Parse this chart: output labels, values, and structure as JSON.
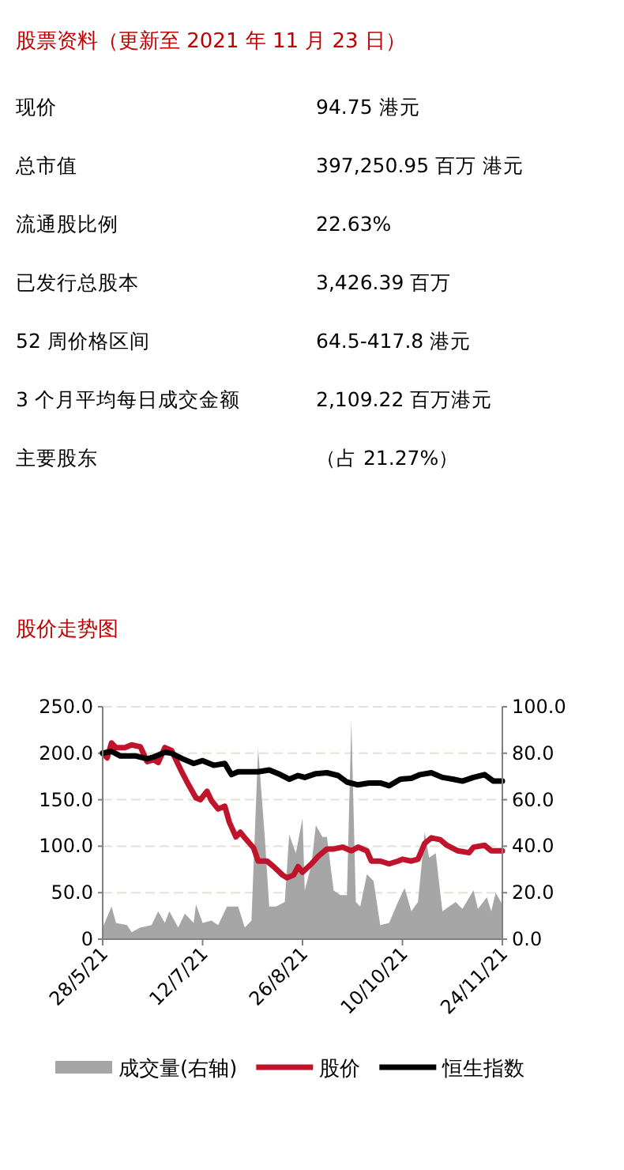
{
  "chart_data": [
    {
      "type": "other",
      "title": "股票资料（更新至 2021 年 11 月 23 日）",
      "annotations": [
        "现价",
        "94.75 港元",
        "总市值",
        "397,250.95 百万 港元",
        "流通股比例",
        "22.63%",
        "已发行总股本",
        "3,426.39 百万",
        "52 周价格区间",
        "64.5-417.8 港元",
        "3 个月平均每日成交金额",
        "2,109.22 百万港元",
        "主要股东",
        "（占 21.27%）"
      ]
    },
    {
      "type": "line",
      "title": "股价走势图",
      "grid": "y",
      "legend": "bottom",
      "xlim": [
        "2021-05-28",
        "2021-11-24"
      ],
      "xticks": [
        {
          "value": "2021-05-28",
          "label": "28/5/21"
        },
        {
          "value": "2021-07-12",
          "label": "12/7/21"
        },
        {
          "value": "2021-08-26",
          "label": "26/8/21"
        },
        {
          "value": "2021-10-10",
          "label": "10/10/21"
        },
        {
          "value": "2021-11-24",
          "label": "24/11/21"
        }
      ],
      "ylim": [
        0,
        250
      ],
      "yticks": [
        {
          "value": 0,
          "label": "0"
        },
        {
          "value": 50,
          "label": "50.0"
        },
        {
          "value": 100,
          "label": "100.0"
        },
        {
          "value": 150,
          "label": "150.0"
        },
        {
          "value": 200,
          "label": "200.0"
        },
        {
          "value": 250,
          "label": "250.0"
        }
      ],
      "y2lim": [
        0,
        100
      ],
      "y2ticks": [
        {
          "value": 0,
          "label": "0.0"
        },
        {
          "value": 20,
          "label": "20.0"
        },
        {
          "value": 40,
          "label": "40.0"
        },
        {
          "value": 60,
          "label": "60.0"
        },
        {
          "value": 80,
          "label": "80.0"
        },
        {
          "value": 100,
          "label": "100.0"
        }
      ],
      "series": [
        {
          "name": "成交量(右轴)",
          "type": "area",
          "axis": "y2",
          "color": "#a6a6a6",
          "x": [
            "2021-05-28",
            "2021-06-01",
            "2021-06-03",
            "2021-06-08",
            "2021-06-10",
            "2021-06-14",
            "2021-06-19",
            "2021-06-22",
            "2021-06-25",
            "2021-06-27",
            "2021-07-01",
            "2021-07-04",
            "2021-07-08",
            "2021-07-09",
            "2021-07-12",
            "2021-07-16",
            "2021-07-19",
            "2021-07-23",
            "2021-07-28",
            "2021-07-31",
            "2021-08-03",
            "2021-08-06",
            "2021-08-09",
            "2021-08-11",
            "2021-08-14",
            "2021-08-18",
            "2021-08-20",
            "2021-08-23",
            "2021-08-26",
            "2021-08-27",
            "2021-08-30",
            "2021-09-01",
            "2021-09-04",
            "2021-09-06",
            "2021-09-09",
            "2021-09-12",
            "2021-09-15",
            "2021-09-17",
            "2021-09-19",
            "2021-09-21",
            "2021-09-24",
            "2021-09-27",
            "2021-09-30",
            "2021-10-04",
            "2021-10-08",
            "2021-10-11",
            "2021-10-14",
            "2021-10-17",
            "2021-10-20",
            "2021-10-22",
            "2021-10-25",
            "2021-10-28",
            "2021-10-31",
            "2021-11-03",
            "2021-11-06",
            "2021-11-11",
            "2021-11-13",
            "2021-11-17",
            "2021-11-19",
            "2021-11-21",
            "2021-11-24"
          ],
          "values": [
            5,
            14,
            7,
            6,
            3,
            5,
            6,
            12,
            7,
            12,
            5,
            11,
            7,
            15,
            7,
            8,
            6,
            14,
            14,
            5,
            8,
            82,
            44,
            14,
            14,
            16,
            45,
            37,
            52,
            21,
            32,
            49,
            44,
            44,
            21,
            19,
            19,
            94,
            16,
            14,
            28,
            25,
            6,
            7,
            16,
            22,
            12,
            16,
            46,
            35,
            37,
            12,
            14,
            16,
            13,
            21,
            13,
            18,
            12,
            20,
            15
          ]
        },
        {
          "name": "股价",
          "color": "#c0142c",
          "x": [
            "2021-05-28",
            "2021-05-30",
            "2021-06-01",
            "2021-06-03",
            "2021-06-07",
            "2021-06-10",
            "2021-06-14",
            "2021-06-17",
            "2021-06-20",
            "2021-06-22",
            "2021-06-25",
            "2021-06-28",
            "2021-07-02",
            "2021-07-05",
            "2021-07-09",
            "2021-07-11",
            "2021-07-14",
            "2021-07-16",
            "2021-07-19",
            "2021-07-22",
            "2021-07-24",
            "2021-07-27",
            "2021-07-29",
            "2021-07-31",
            "2021-08-04",
            "2021-08-06",
            "2021-08-10",
            "2021-08-13",
            "2021-08-17",
            "2021-08-19",
            "2021-08-22",
            "2021-08-24",
            "2021-08-26",
            "2021-08-30",
            "2021-09-02",
            "2021-09-06",
            "2021-09-09",
            "2021-09-13",
            "2021-09-17",
            "2021-09-20",
            "2021-09-24",
            "2021-09-26",
            "2021-09-30",
            "2021-10-04",
            "2021-10-08",
            "2021-10-10",
            "2021-10-14",
            "2021-10-17",
            "2021-10-20",
            "2021-10-23",
            "2021-10-27",
            "2021-10-30",
            "2021-11-04",
            "2021-11-09",
            "2021-11-11",
            "2021-11-16",
            "2021-11-19",
            "2021-11-24"
          ],
          "values": [
            200,
            195,
            211,
            206,
            206,
            209,
            207,
            191,
            193,
            190,
            206,
            203,
            183,
            169,
            152,
            150,
            159,
            149,
            140,
            143,
            126,
            110,
            115,
            109,
            98,
            84,
            84,
            78,
            69,
            66,
            69,
            78,
            72,
            81,
            89,
            97,
            97,
            99,
            95,
            99,
            95,
            84,
            84,
            81,
            84,
            86,
            84,
            86,
            103,
            109,
            107,
            101,
            95,
            93,
            99,
            101,
            95,
            95
          ]
        },
        {
          "name": "恒生指数",
          "color": "#000000",
          "x": [
            "2021-05-28",
            "2021-06-01",
            "2021-06-05",
            "2021-06-12",
            "2021-06-17",
            "2021-06-20",
            "2021-06-25",
            "2021-06-28",
            "2021-07-03",
            "2021-07-08",
            "2021-07-12",
            "2021-07-17",
            "2021-07-22",
            "2021-07-25",
            "2021-07-28",
            "2021-08-01",
            "2021-08-06",
            "2021-08-11",
            "2021-08-16",
            "2021-08-20",
            "2021-08-24",
            "2021-08-27",
            "2021-09-01",
            "2021-09-06",
            "2021-09-11",
            "2021-09-15",
            "2021-09-20",
            "2021-09-25",
            "2021-09-30",
            "2021-10-04",
            "2021-10-09",
            "2021-10-14",
            "2021-10-18",
            "2021-10-23",
            "2021-10-28",
            "2021-11-02",
            "2021-11-06",
            "2021-11-11",
            "2021-11-16",
            "2021-11-20",
            "2021-11-24"
          ],
          "values": [
            200,
            202,
            197,
            197,
            194,
            196,
            201,
            200,
            194,
            189,
            192,
            187,
            189,
            177,
            180,
            180,
            180,
            182,
            177,
            172,
            176,
            174,
            178,
            179,
            176,
            169,
            166,
            168,
            168,
            165,
            172,
            173,
            177,
            179,
            174,
            172,
            170,
            174,
            177,
            170,
            170
          ]
        }
      ]
    }
  ]
}
